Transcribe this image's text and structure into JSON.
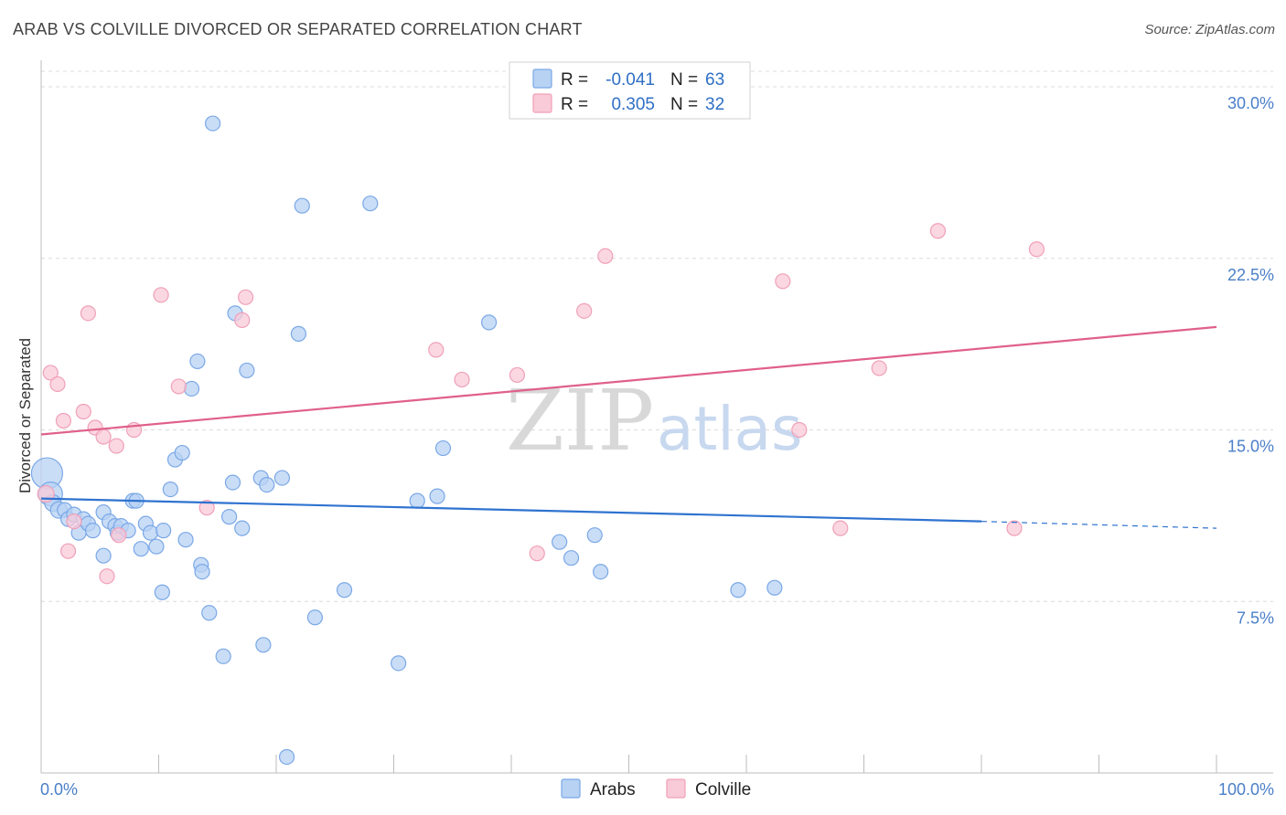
{
  "title": "ARAB VS COLVILLE DIVORCED OR SEPARATED CORRELATION CHART",
  "source": "Source: ZipAtlas.com",
  "chart_data": {
    "type": "scatter",
    "title": "ARAB VS COLVILLE DIVORCED OR SEPARATED CORRELATION CHART",
    "xlabel": "",
    "ylabel": "Divorced or Separated",
    "xlim": [
      0,
      100
    ],
    "ylim": [
      0,
      31
    ],
    "x_tick_labels": [
      "0.0%",
      "100.0%"
    ],
    "y_ticks": [
      7.5,
      15.0,
      22.5,
      30.0
    ],
    "y_tick_labels": [
      "7.5%",
      "15.0%",
      "22.5%",
      "30.0%"
    ],
    "grid": "horizontal dashed",
    "legend_position": "top-center",
    "watermark": {
      "zip": "ZIP",
      "atlas": "atlas"
    },
    "series": [
      {
        "name": "Arabs",
        "color": "#7aa8e6",
        "fill": "#b8d2f4",
        "line_color": "#2f73d0",
        "r_label": "R =",
        "r_value": "-0.041",
        "n_label": "N =",
        "n_value": "63",
        "trend": {
          "x0": 0,
          "y0": 12.0,
          "x1": 80,
          "y1": 11.0,
          "x_dash_end": 100,
          "y_dash_end": 10.7
        },
        "points": [
          [
            0.5,
            13.1,
            16
          ],
          [
            0.8,
            12.2,
            12
          ],
          [
            1.0,
            11.8,
            8
          ],
          [
            1.5,
            11.5,
            8
          ],
          [
            2.0,
            11.5,
            7
          ],
          [
            2.3,
            11.1,
            7
          ],
          [
            2.8,
            11.3,
            7
          ],
          [
            3.2,
            10.5,
            7
          ],
          [
            3.6,
            11.1,
            7
          ],
          [
            4.0,
            10.9,
            7
          ],
          [
            4.4,
            10.6,
            7
          ],
          [
            5.3,
            9.5,
            7
          ],
          [
            5.3,
            11.4,
            7
          ],
          [
            5.8,
            11.0,
            7
          ],
          [
            6.3,
            10.8,
            7
          ],
          [
            6.5,
            10.5,
            7
          ],
          [
            6.8,
            10.8,
            7
          ],
          [
            7.4,
            10.6,
            7
          ],
          [
            7.8,
            11.9,
            7
          ],
          [
            8.1,
            11.9,
            7
          ],
          [
            8.5,
            9.8,
            7
          ],
          [
            8.9,
            10.9,
            7
          ],
          [
            9.3,
            10.5,
            7
          ],
          [
            9.8,
            9.9,
            7
          ],
          [
            10.4,
            10.6,
            7
          ],
          [
            10.3,
            7.9,
            7
          ],
          [
            11.0,
            12.4,
            7
          ],
          [
            11.4,
            13.7,
            7
          ],
          [
            12.0,
            14.0,
            7
          ],
          [
            12.3,
            10.2,
            7
          ],
          [
            12.8,
            16.8,
            7
          ],
          [
            13.3,
            18.0,
            7
          ],
          [
            13.6,
            9.1,
            7
          ],
          [
            13.7,
            8.8,
            7
          ],
          [
            14.3,
            7.0,
            7
          ],
          [
            14.6,
            28.4,
            7
          ],
          [
            15.5,
            5.1,
            7
          ],
          [
            16.0,
            11.2,
            7
          ],
          [
            16.3,
            12.7,
            7
          ],
          [
            16.5,
            20.1,
            7
          ],
          [
            17.1,
            10.7,
            7
          ],
          [
            17.5,
            17.6,
            7
          ],
          [
            18.7,
            12.9,
            7
          ],
          [
            18.9,
            5.6,
            7
          ],
          [
            19.2,
            12.6,
            7
          ],
          [
            20.5,
            12.9,
            7
          ],
          [
            20.9,
            0.7,
            7
          ],
          [
            21.9,
            19.2,
            7
          ],
          [
            22.2,
            24.8,
            7
          ],
          [
            23.3,
            6.8,
            7
          ],
          [
            25.8,
            8.0,
            7
          ],
          [
            28.0,
            24.9,
            7
          ],
          [
            30.4,
            4.8,
            7
          ],
          [
            32.0,
            11.9,
            7
          ],
          [
            33.7,
            12.1,
            7
          ],
          [
            34.2,
            14.2,
            7
          ],
          [
            38.1,
            19.7,
            7
          ],
          [
            44.1,
            10.1,
            7
          ],
          [
            45.1,
            9.4,
            7
          ],
          [
            47.1,
            10.4,
            7
          ],
          [
            47.6,
            8.8,
            7
          ],
          [
            59.3,
            8.0,
            7
          ],
          [
            62.4,
            8.1,
            7
          ]
        ]
      },
      {
        "name": "Colville",
        "color": "#f0a0b8",
        "fill": "#f9cad8",
        "line_color": "#e0608a",
        "r_label": "R =",
        "r_value": "0.305",
        "n_label": "N =",
        "n_value": "32",
        "trend": {
          "x0": 0,
          "y0": 14.8,
          "x1": 100,
          "y1": 19.5
        },
        "points": [
          [
            0.4,
            12.2,
            8
          ],
          [
            0.8,
            17.5,
            7
          ],
          [
            1.4,
            17.0,
            7
          ],
          [
            1.9,
            15.4,
            7
          ],
          [
            2.3,
            9.7,
            7
          ],
          [
            2.8,
            11.0,
            7
          ],
          [
            3.6,
            15.8,
            7
          ],
          [
            4.0,
            20.1,
            7
          ],
          [
            4.6,
            15.1,
            7
          ],
          [
            5.3,
            14.7,
            7
          ],
          [
            5.6,
            8.6,
            7
          ],
          [
            6.4,
            14.3,
            7
          ],
          [
            6.6,
            10.4,
            7
          ],
          [
            7.9,
            15.0,
            7
          ],
          [
            10.2,
            20.9,
            7
          ],
          [
            11.7,
            16.9,
            7
          ],
          [
            14.1,
            11.6,
            7
          ],
          [
            17.1,
            19.8,
            7
          ],
          [
            17.4,
            20.8,
            7
          ],
          [
            33.6,
            18.5,
            7
          ],
          [
            35.8,
            17.2,
            7
          ],
          [
            40.5,
            17.4,
            7
          ],
          [
            42.2,
            9.6,
            7
          ],
          [
            46.2,
            20.2,
            7
          ],
          [
            48.0,
            22.6,
            7
          ],
          [
            63.1,
            21.5,
            7
          ],
          [
            64.5,
            15.0,
            7
          ],
          [
            68.0,
            10.7,
            7
          ],
          [
            71.3,
            17.7,
            7
          ],
          [
            76.3,
            23.7,
            7
          ],
          [
            82.8,
            10.7,
            7
          ],
          [
            84.7,
            22.9,
            7
          ]
        ]
      }
    ]
  }
}
